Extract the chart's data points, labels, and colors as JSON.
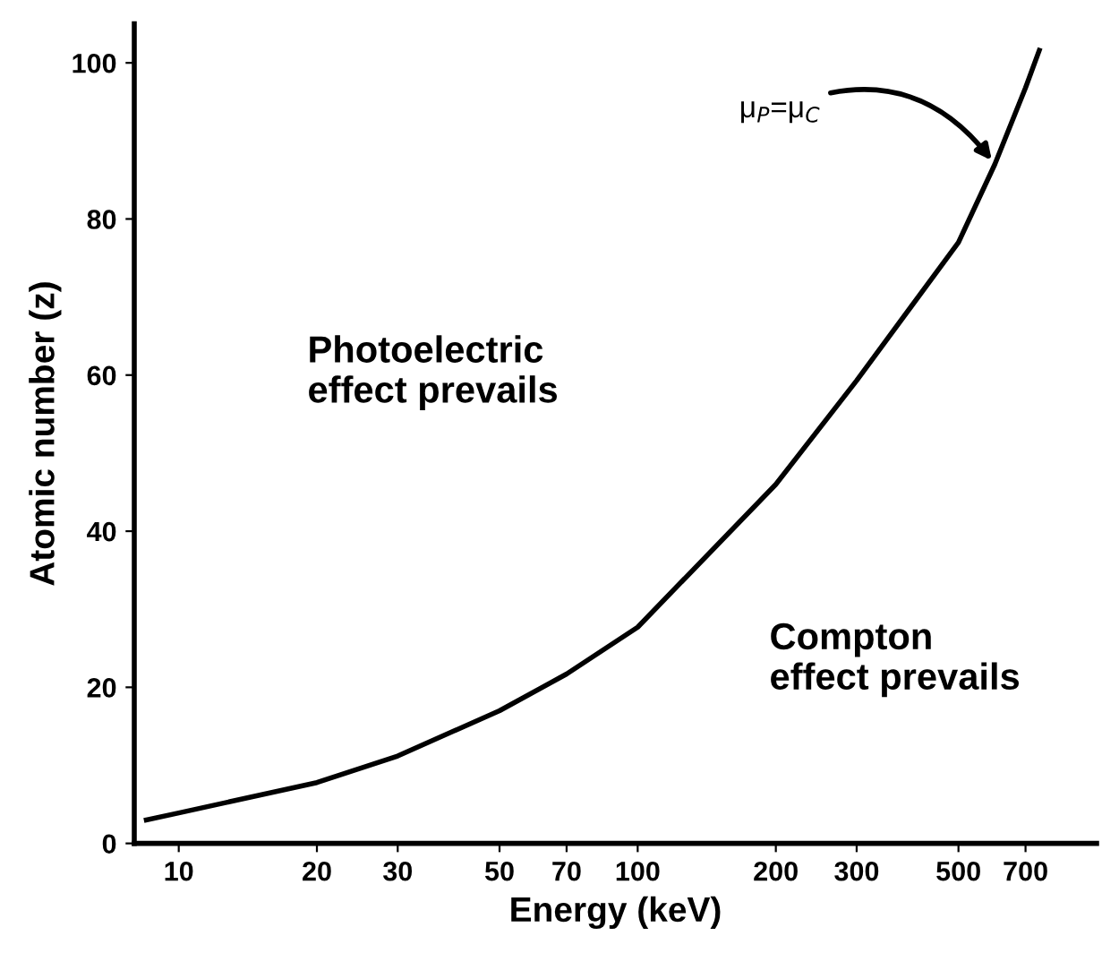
{
  "chart_data": {
    "type": "line",
    "xlabel": "Energy (keV)",
    "ylabel": "Atomic number (z)",
    "x": [
      8.5,
      10,
      20,
      30,
      50,
      70,
      100,
      200,
      300,
      500,
      600,
      700,
      750
    ],
    "series": [
      {
        "color": "#000000",
        "values": [
          3,
          3.9,
          7.8,
          11.2,
          17,
          21.7,
          27.7,
          46,
          59.3,
          77,
          87,
          96.8,
          101.6
        ]
      }
    ],
    "log": "x",
    "xlim": [
      8,
      1000
    ],
    "ylim": [
      0,
      105
    ],
    "xticks": [
      10,
      20,
      30,
      50,
      70,
      100,
      200,
      300,
      500,
      700
    ],
    "yticks": [
      0,
      20,
      40,
      60,
      80,
      100
    ],
    "grid": false,
    "marker": "none",
    "line_style": "solid",
    "annotations": [
      {
        "text": "μ$_{P}$=μ$_{C}$",
        "x": 600,
        "y": 87
      },
      "Photoelectric\neffect prevails",
      "Compton\neffect prevails"
    ]
  }
}
